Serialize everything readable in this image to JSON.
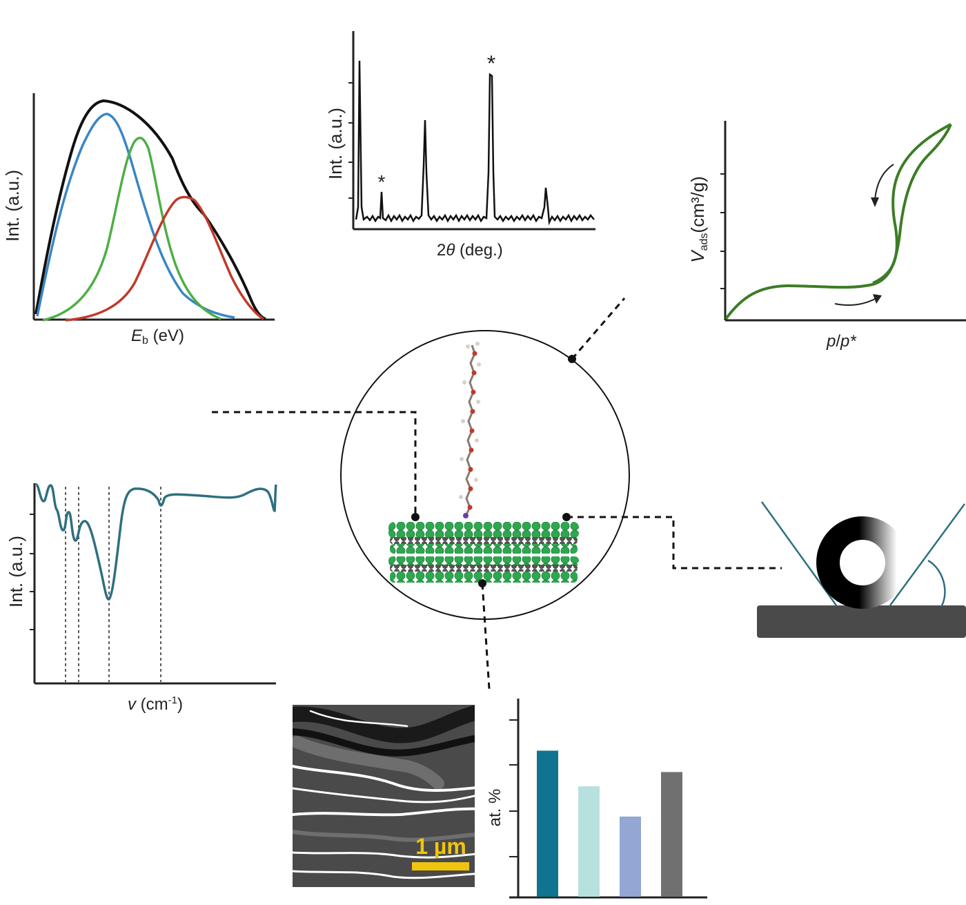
{
  "xps": {
    "ylabel": "Int. (a.u.)",
    "xlabel_symbol": "E",
    "xlabel_sub": "b",
    "xlabel_unit": " (eV)",
    "colors": {
      "envelope": "#111111",
      "c1": "#3a86c4",
      "c2": "#4fae45",
      "c3": "#c0392b"
    }
  },
  "xrd": {
    "ylabel": "Int. (a.u.)",
    "xlabel_pre": "2",
    "xlabel_symbol": "θ",
    "xlabel_unit": " (deg.)",
    "marker": "*"
  },
  "bet": {
    "ylabel_symbol": "V",
    "ylabel_sub": "ads",
    "ylabel_unit": "(cm³/g)",
    "xlabel_a": "p",
    "xlabel_b": "p*",
    "color": "#3c7d25"
  },
  "ftir": {
    "ylabel": "Int. (a.u.)",
    "xlabel_symbol": "v",
    "xlabel_unit": " (cm",
    "xlabel_sup": "-1",
    "xlabel_close": ")",
    "color": "#2f6f7f"
  },
  "sem": {
    "scale_label": "1 µm",
    "scale_color": "#f1c40f"
  },
  "eds": {
    "ylabel": "at. %",
    "bars": [
      {
        "value": 0.82,
        "color": "#0f7490"
      },
      {
        "value": 0.62,
        "color": "#b7e1de"
      },
      {
        "value": 0.45,
        "color": "#93a6d4"
      },
      {
        "value": 0.7,
        "color": "#707070"
      }
    ]
  },
  "contact_angle": {
    "substrate_color": "#4a4a4a",
    "line_color": "#2f6f7f"
  },
  "molecule": {
    "layer_color": "#2ea84f",
    "chain_color": "#c0392b"
  }
}
